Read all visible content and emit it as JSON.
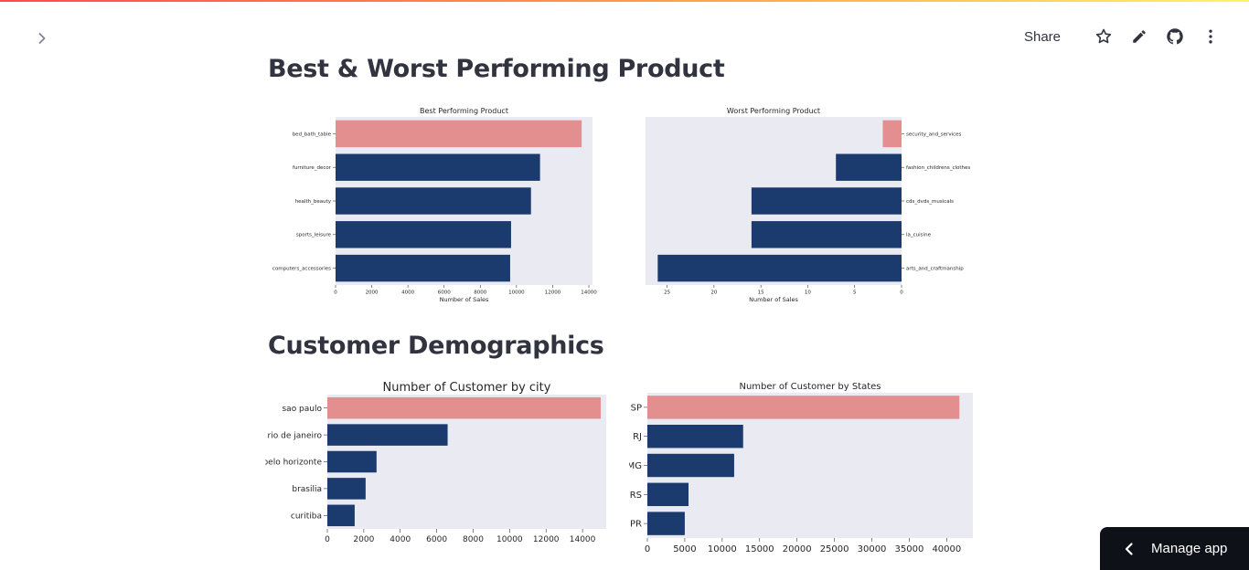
{
  "header": {
    "share_label": "Share",
    "icons": [
      "star-icon",
      "edit-icon",
      "github-icon",
      "more-vertical-icon"
    ]
  },
  "sections": [
    {
      "title": "Best & Worst Performing Product"
    },
    {
      "title": "Customer Demographics"
    }
  ],
  "manage_app": {
    "label": "Manage app"
  },
  "colors": {
    "highlight": "#e38f8f",
    "bar": "#1b3b6f",
    "plot_bg": "#eaeaf2"
  },
  "chart_data": [
    {
      "type": "bar",
      "orientation": "horizontal",
      "title": "Best Performing Product",
      "xlabel": "Number of Sales",
      "categories": [
        "bed_bath_table",
        "furniture_decor",
        "health_beauty",
        "sports_leisure",
        "computers_accessories"
      ],
      "values": [
        13600,
        11300,
        10800,
        9700,
        9650
      ],
      "xlim": [
        0,
        14200
      ],
      "xticks": [
        0,
        2000,
        4000,
        6000,
        8000,
        10000,
        12000,
        14000
      ],
      "ytick_side": "left",
      "highlight_index": 0
    },
    {
      "type": "bar",
      "orientation": "horizontal",
      "title": "Worst Performing Product",
      "xlabel": "Number of Sales",
      "categories": [
        "security_and_services",
        "fashion_childrens_clothes",
        "cds_dvds_musicals",
        "la_cuisine",
        "arts_and_craftmanship"
      ],
      "values": [
        2,
        7,
        16,
        16,
        26
      ],
      "xlim": [
        27.3,
        0
      ],
      "xticks": [
        25,
        20,
        15,
        10,
        5,
        0
      ],
      "inverted_x": true,
      "ytick_side": "right",
      "highlight_index": 0
    },
    {
      "type": "bar",
      "orientation": "horizontal",
      "title": "Number of Customer by city",
      "xlabel": "",
      "categories": [
        "sao paulo",
        "rio de janeiro",
        "belo horizonte",
        "brasilia",
        "curitiba"
      ],
      "values": [
        15000,
        6600,
        2700,
        2100,
        1500
      ],
      "xlim": [
        0,
        15300
      ],
      "xticks": [
        0,
        2000,
        4000,
        6000,
        8000,
        10000,
        12000,
        14000
      ],
      "ytick_side": "left",
      "highlight_index": 0
    },
    {
      "type": "bar",
      "orientation": "horizontal",
      "title": "Number of Customer by States",
      "xlabel": "",
      "categories": [
        "SP",
        "RJ",
        "MG",
        "RS",
        "PR"
      ],
      "values": [
        41700,
        12800,
        11600,
        5500,
        5000
      ],
      "xlim": [
        0,
        43500
      ],
      "xticks": [
        0,
        5000,
        10000,
        15000,
        20000,
        25000,
        30000,
        35000,
        40000
      ],
      "ytick_side": "left",
      "highlight_index": 0
    }
  ]
}
